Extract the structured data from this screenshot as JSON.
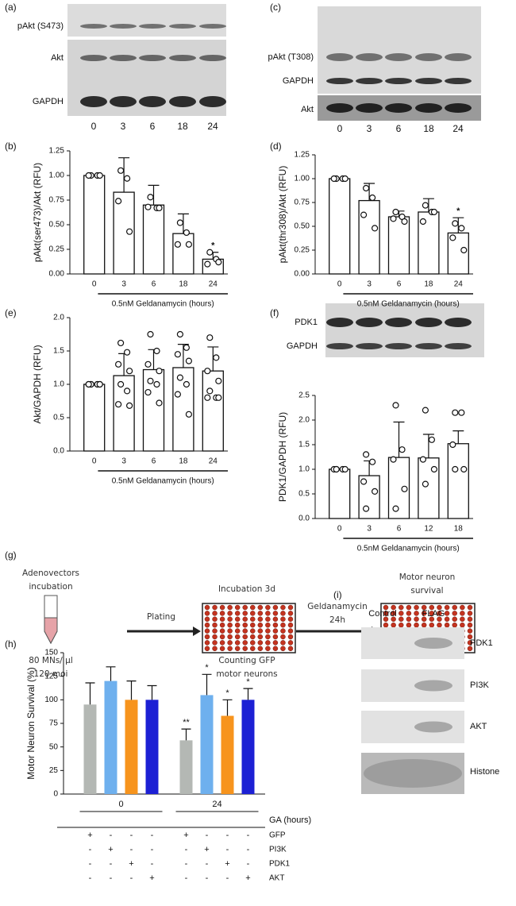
{
  "blots": [
    {
      "panel": "(a)",
      "rows": [
        "pAkt (S473)",
        "Akt",
        "GAPDH"
      ],
      "lanes": [
        "0",
        "3",
        "6",
        "18",
        "24"
      ]
    },
    {
      "panel": "(c)",
      "rows": [
        "pAkt (T308)",
        "GAPDH",
        "Akt"
      ],
      "lanes": [
        "0",
        "3",
        "6",
        "18",
        "24"
      ]
    },
    {
      "rows": [
        "PDK1",
        "GAPDH"
      ]
    },
    {
      "panel": "(i)",
      "columns": [
        "Control",
        "FLAG"
      ],
      "rows": [
        "PDK1",
        "PI3K",
        "AKT",
        "Histone"
      ]
    }
  ],
  "diagram": {
    "panel": "(g)",
    "start": [
      "Adenovectors",
      "incubation"
    ],
    "concentration": [
      "80 MNs/ µl",
      "120 moi"
    ],
    "plating": "Plating",
    "incubation": "Incubation 3d",
    "counting": [
      "Counting GFP",
      "motor neurons"
    ],
    "treatment": [
      "Geldanamycin",
      "24h"
    ],
    "outcome": [
      "Motor neuron",
      "survival"
    ]
  },
  "chart_data": [
    {
      "type": "bar",
      "panel": "(b)",
      "y_label": "pAkt(ser473)/Akt (RFU)",
      "x_label": "0.5nM Geldanamycin (hours)",
      "categories": [
        "0",
        "3",
        "6",
        "18",
        "24"
      ],
      "values": [
        1.0,
        0.83,
        0.7,
        0.41,
        0.15
      ],
      "errors": [
        0,
        0.35,
        0.2,
        0.2,
        0.07
      ],
      "points": [
        [
          1,
          1,
          1,
          1
        ],
        [
          1.05,
          0.97,
          0.74,
          0.43
        ],
        [
          0.78,
          0.67,
          0.68,
          0.67
        ],
        [
          0.52,
          0.42,
          0.3,
          0.3
        ],
        [
          0.22,
          0.15,
          0.1,
          0.12
        ]
      ],
      "significance": [
        null,
        null,
        null,
        null,
        "*"
      ],
      "ylim": [
        0,
        1.25
      ],
      "yticks": [
        {
          "value": 0,
          "label": "0.00"
        },
        {
          "value": 0.25,
          "label": "0.25"
        },
        {
          "value": 0.5,
          "label": "0.50"
        },
        {
          "value": 0.75,
          "label": "0.75"
        },
        {
          "value": 1,
          "label": "1.00"
        },
        {
          "value": 1.25,
          "label": "1.25"
        }
      ]
    },
    {
      "type": "bar",
      "panel": "(d)",
      "y_label": "pAkt(thr308)/Akt (RFU)",
      "x_label": "0.5nM Geldanamycin (hours)",
      "categories": [
        "0",
        "3",
        "6",
        "18",
        "24"
      ],
      "values": [
        1.0,
        0.77,
        0.6,
        0.65,
        0.43
      ],
      "errors": [
        0,
        0.18,
        0.06,
        0.14,
        0.16
      ],
      "points": [
        [
          1,
          1,
          1,
          1
        ],
        [
          0.9,
          0.8,
          0.62,
          0.48
        ],
        [
          0.65,
          0.6,
          0.58,
          0.55
        ],
        [
          0.72,
          0.65,
          0.55,
          0.65
        ],
        [
          0.53,
          0.48,
          0.38,
          0.25
        ]
      ],
      "significance": [
        null,
        null,
        null,
        null,
        "*"
      ],
      "ylim": [
        0,
        1.25
      ],
      "yticks": [
        {
          "value": 0,
          "label": "0.00"
        },
        {
          "value": 0.25,
          "label": "0.25"
        },
        {
          "value": 0.5,
          "label": "0.50"
        },
        {
          "value": 0.75,
          "label": "0.75"
        },
        {
          "value": 1,
          "label": "1.00"
        },
        {
          "value": 1.25,
          "label": "1.25"
        }
      ]
    },
    {
      "type": "bar",
      "panel": "(e)",
      "y_label": "Akt/GAPDH (RFU)",
      "x_label": "0.5nM Geldanamycin (hours)",
      "categories": [
        "0",
        "3",
        "6",
        "18",
        "24"
      ],
      "values": [
        1.0,
        1.13,
        1.22,
        1.25,
        1.2
      ],
      "errors": [
        0,
        0.33,
        0.3,
        0.35,
        0.36
      ],
      "points": [
        [
          1,
          1,
          1,
          1,
          1,
          1,
          1,
          1
        ],
        [
          1.62,
          1.48,
          1.3,
          1.2,
          1.0,
          0.9,
          0.7,
          0.68
        ],
        [
          1.75,
          1.5,
          1.3,
          1.2,
          1.05,
          1.0,
          0.88,
          0.72
        ],
        [
          1.75,
          1.55,
          1.45,
          1.35,
          1.1,
          1.0,
          0.85,
          0.55
        ],
        [
          1.7,
          1.4,
          1.2,
          1.05,
          0.9,
          0.8,
          0.8,
          0.8
        ]
      ],
      "ylim": [
        0,
        2
      ],
      "yticks": [
        {
          "value": 0,
          "label": "0.0"
        },
        {
          "value": 0.5,
          "label": "0.5"
        },
        {
          "value": 1,
          "label": "1.0"
        },
        {
          "value": 1.5,
          "label": "1.5"
        },
        {
          "value": 2,
          "label": "2.0"
        }
      ]
    },
    {
      "type": "bar",
      "panel": "(f)",
      "y_label": "PDK1/GAPDH (RFU)",
      "x_label": "0.5nM Geldanamycin (hours)",
      "categories": [
        "0",
        "3",
        "6",
        "12",
        "18"
      ],
      "values": [
        1.0,
        0.87,
        1.24,
        1.23,
        1.52
      ],
      "errors": [
        0,
        0.3,
        0.72,
        0.48,
        0.26
      ],
      "points": [
        [
          1,
          1,
          1,
          1,
          1
        ],
        [
          1.3,
          1.15,
          0.75,
          0.55,
          0.2
        ],
        [
          2.3,
          1.4,
          1.2,
          0.6,
          0.2
        ],
        [
          2.2,
          1.6,
          1.2,
          1.0,
          0.7
        ],
        [
          2.15,
          2.15,
          1.5,
          1.0,
          1.0
        ]
      ],
      "ylim": [
        0,
        2.5
      ],
      "yticks": [
        {
          "value": 0,
          "label": "0.0"
        },
        {
          "value": 0.5,
          "label": "0.5"
        },
        {
          "value": 1,
          "label": "1.0"
        },
        {
          "value": 1.5,
          "label": "1.5"
        },
        {
          "value": 2,
          "label": "2.0"
        },
        {
          "value": 2.5,
          "label": "2.5"
        }
      ]
    },
    {
      "type": "grouped_bar",
      "panel": "(h)",
      "y_label": "Motor Neuron Survival (%)",
      "x_label": "GA (hours)",
      "categories": [
        "0",
        "24"
      ],
      "series": [
        {
          "name": "GFP",
          "color": "#b4b8b4",
          "values": [
            95,
            57
          ],
          "errors": [
            23,
            12
          ],
          "significance": [
            null,
            "**"
          ],
          "conditions": [
            "+",
            "-",
            "-",
            "-",
            "+",
            "-",
            "-",
            "-"
          ]
        },
        {
          "name": "PI3K",
          "color": "#6eb0ee",
          "values": [
            120,
            105
          ],
          "errors": [
            15,
            22
          ],
          "significance": [
            null,
            "*"
          ],
          "conditions": [
            "-",
            "+",
            "-",
            "-",
            "-",
            "+",
            "-",
            "-"
          ]
        },
        {
          "name": "PDK1",
          "color": "#f7941d",
          "values": [
            100,
            83
          ],
          "errors": [
            20,
            17
          ],
          "significance": [
            null,
            "*"
          ],
          "conditions": [
            "-",
            "-",
            "+",
            "-",
            "-",
            "-",
            "+",
            "-"
          ]
        },
        {
          "name": "AKT",
          "color": "#1c20d4",
          "values": [
            100,
            100
          ],
          "errors": [
            15,
            12
          ],
          "significance": [
            null,
            "*"
          ],
          "conditions": [
            "-",
            "-",
            "-",
            "+",
            "-",
            "-",
            "-",
            "+"
          ]
        }
      ],
      "ylim": [
        0,
        150
      ],
      "yticks": [
        0,
        25,
        50,
        75,
        100,
        125,
        150
      ]
    }
  ]
}
